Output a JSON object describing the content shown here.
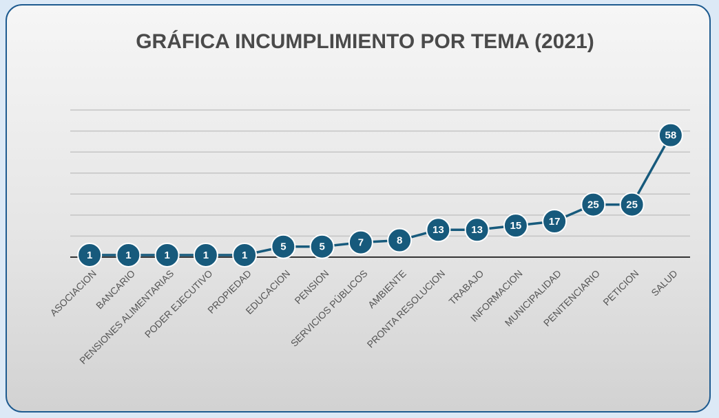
{
  "chart_data": {
    "type": "line",
    "title": "GRÁFICA INCUMPLIMIENTO POR TEMA (2021)",
    "categories": [
      "ASOCIACION",
      "BANCARIO",
      "PENSIONES ALIMENTARIAS",
      "PODER EJECUTIVO",
      "PROPIEDAD",
      "EDUCACION",
      "PENSION",
      "SERVICIOS PÚBLICOS",
      "AMBIENTE",
      "PRONTA RESOLUCION",
      "TRABAJO",
      "INFORMACION",
      "MUNICIPALIDAD",
      "PENITENCIARIO",
      "PETICION",
      "SALUD"
    ],
    "values": [
      1,
      1,
      1,
      1,
      1,
      5,
      5,
      7,
      8,
      13,
      13,
      15,
      17,
      25,
      25,
      58
    ],
    "color": "#175a7c",
    "ylim": [
      0,
      70
    ],
    "yticks": [
      0,
      10,
      20,
      30,
      40,
      50,
      60,
      70
    ],
    "grid": true
  }
}
